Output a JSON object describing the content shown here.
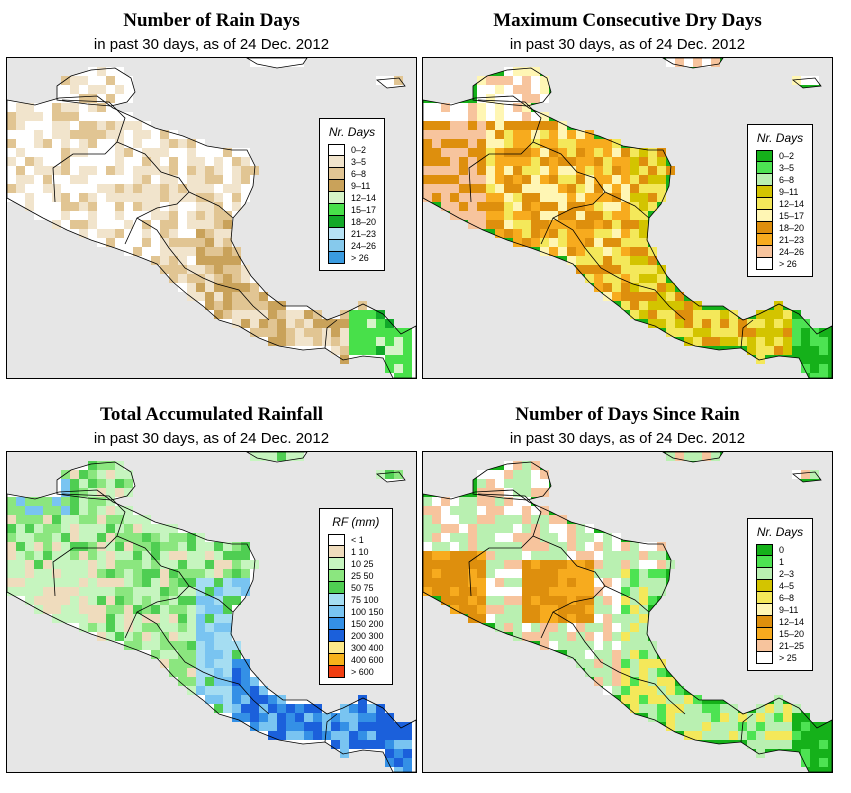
{
  "panels": [
    {
      "id": "rain-days",
      "title": "Number of Rain Days",
      "subtitle": "in past 30 days, as of  24 Dec. 2012",
      "legend": {
        "title": "Nr. Days",
        "items": [
          {
            "label": "0–2",
            "color": "#ffffff"
          },
          {
            "label": "3–5",
            "color": "#f1e4cc"
          },
          {
            "label": "6–8",
            "color": "#e1c593"
          },
          {
            "label": "9–11",
            "color": "#c9a25a"
          },
          {
            "label": "12–14",
            "color": "#d6f4c8"
          },
          {
            "label": "15–17",
            "color": "#48e04a"
          },
          {
            "label": "18–20",
            "color": "#11a829"
          },
          {
            "label": "21–23",
            "color": "#b6e2f5"
          },
          {
            "label": "24–26",
            "color": "#86c9ec"
          },
          {
            "label": "> 26",
            "color": "#3a9be0"
          }
        ]
      }
    },
    {
      "id": "max-dry-days",
      "title": "Maximum Consecutive Dry Days",
      "subtitle": "in past 30 days, as of  24 Dec. 2012",
      "legend": {
        "title": "Nr. Days",
        "items": [
          {
            "label": "0–2",
            "color": "#15b11a"
          },
          {
            "label": "3–5",
            "color": "#4de352"
          },
          {
            "label": "6–8",
            "color": "#b9f0b1"
          },
          {
            "label": "9–11",
            "color": "#d3c400"
          },
          {
            "label": "12–14",
            "color": "#f4e85a"
          },
          {
            "label": "15–17",
            "color": "#fff6b4"
          },
          {
            "label": "18–20",
            "color": "#de8f0d"
          },
          {
            "label": "21–23",
            "color": "#f7ab1e"
          },
          {
            "label": "24–26",
            "color": "#f7c49d"
          },
          {
            "label": "> 26",
            "color": "#ffffff"
          }
        ]
      }
    },
    {
      "id": "total-rainfall",
      "title": "Total Accumulated Rainfall",
      "subtitle": "in past 30 days, as of  24 Dec. 2012",
      "legend": {
        "title": "RF (mm)",
        "items": [
          {
            "label": "< 1",
            "color": "#ffffff"
          },
          {
            "label": "1  10",
            "color": "#efdcbd"
          },
          {
            "label": "10  25",
            "color": "#c6f5bf"
          },
          {
            "label": "25  50",
            "color": "#8be67f"
          },
          {
            "label": "50  75",
            "color": "#4fce52"
          },
          {
            "label": "75  100",
            "color": "#a5ddf2"
          },
          {
            "label": "100  150",
            "color": "#79c4f1"
          },
          {
            "label": "150  200",
            "color": "#3490e6"
          },
          {
            "label": "200  300",
            "color": "#1b60db"
          },
          {
            "label": "300  400",
            "color": "#fce98a"
          },
          {
            "label": "400  600",
            "color": "#f7b21b"
          },
          {
            "label": "> 600",
            "color": "#f13e11"
          }
        ]
      }
    },
    {
      "id": "days-since-rain",
      "title": "Number of Days Since Rain",
      "subtitle": "in past 30 days, as of  24 Dec. 2012",
      "legend": {
        "title": "Nr. Days",
        "items": [
          {
            "label": "0",
            "color": "#15b11a"
          },
          {
            "label": "1",
            "color": "#4de352"
          },
          {
            "label": "2–3",
            "color": "#b9f0b1"
          },
          {
            "label": "4–5",
            "color": "#d3c400"
          },
          {
            "label": "6–8",
            "color": "#f4e85a"
          },
          {
            "label": "9–11",
            "color": "#fff6b4"
          },
          {
            "label": "12–14",
            "color": "#de8f0d"
          },
          {
            "label": "15–20",
            "color": "#f7ab1e"
          },
          {
            "label": "21–25",
            "color": "#f7c49d"
          },
          {
            "label": "> 25",
            "color": "#ffffff"
          }
        ]
      }
    }
  ],
  "colors": {
    "ocean": "#e6e6e6",
    "border": "#000000"
  }
}
